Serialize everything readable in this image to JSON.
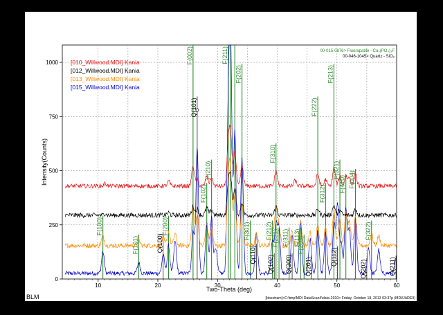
{
  "chart_data": {
    "type": "line",
    "xlabel": "Two-Theta (deg)",
    "ylabel": "Intensity(Counts)",
    "xlim": [
      4,
      60
    ],
    "ylim": [
      0,
      1000
    ],
    "x_ticks": [
      10,
      20,
      30,
      40,
      50,
      60
    ],
    "y_ticks": [
      0,
      250,
      500,
      750,
      1000
    ],
    "grid": true,
    "legend_placement": "top-left",
    "series": [
      {
        "name": "[010_Willwood.MDI] Kania",
        "color": "#e81010",
        "baseline": 425,
        "noise": 9,
        "peaks": [
          [
            11.2,
            12
          ],
          [
            21.8,
            22
          ],
          [
            25.9,
            95
          ],
          [
            26.6,
            30
          ],
          [
            28.2,
            45
          ],
          [
            29.0,
            40
          ],
          [
            31.8,
            180
          ],
          [
            32.2,
            230
          ],
          [
            32.9,
            160
          ],
          [
            34.1,
            95
          ],
          [
            39.8,
            70
          ],
          [
            43.0,
            25
          ],
          [
            46.8,
            55
          ],
          [
            48.1,
            30
          ],
          [
            49.5,
            85
          ],
          [
            50.5,
            45
          ],
          [
            51.5,
            48
          ],
          [
            52.1,
            40
          ],
          [
            53.1,
            60
          ]
        ]
      },
      {
        "name": "[012_Willwood.MDI] Kania",
        "color": "#000000",
        "baseline": 290,
        "noise": 10,
        "peaks": [
          [
            11.2,
            8
          ],
          [
            21.8,
            12
          ],
          [
            25.9,
            40
          ],
          [
            26.6,
            30
          ],
          [
            28.2,
            35
          ],
          [
            29.0,
            25
          ],
          [
            31.8,
            130
          ],
          [
            32.2,
            160
          ],
          [
            32.9,
            120
          ],
          [
            34.1,
            60
          ],
          [
            39.8,
            40
          ],
          [
            46.8,
            30
          ],
          [
            49.5,
            45
          ],
          [
            50.5,
            25
          ],
          [
            53.1,
            30
          ]
        ]
      },
      {
        "name": "[013_Willwood.MDI] Kania",
        "color": "#ff8c00",
        "baseline": 150,
        "noise": 10,
        "peaks": [
          [
            10.8,
            45
          ],
          [
            16.8,
            25
          ],
          [
            20.9,
            35
          ],
          [
            21.8,
            65
          ],
          [
            22.9,
            55
          ],
          [
            25.9,
            170
          ],
          [
            26.6,
            150
          ],
          [
            28.2,
            100
          ],
          [
            29.0,
            85
          ],
          [
            31.8,
            270
          ],
          [
            32.2,
            330
          ],
          [
            32.9,
            240
          ],
          [
            34.1,
            200
          ],
          [
            36.5,
            55
          ],
          [
            39.2,
            80
          ],
          [
            39.8,
            180
          ],
          [
            40.3,
            90
          ],
          [
            42.5,
            70
          ],
          [
            43.9,
            110
          ],
          [
            45.5,
            60
          ],
          [
            46.8,
            90
          ],
          [
            48.1,
            90
          ],
          [
            49.5,
            160
          ],
          [
            50.5,
            130
          ],
          [
            51.5,
            150
          ],
          [
            52.1,
            110
          ],
          [
            53.1,
            130
          ],
          [
            55.8,
            55
          ],
          [
            57.0,
            45
          ]
        ]
      },
      {
        "name": "[015_Willwood.MDI] Kania",
        "color": "#0000cc",
        "baseline": 22,
        "noise": 9,
        "peaks": [
          [
            10.8,
            100
          ],
          [
            16.8,
            50
          ],
          [
            20.9,
            85
          ],
          [
            21.8,
            130
          ],
          [
            22.9,
            150
          ],
          [
            25.9,
            200
          ],
          [
            26.6,
            580
          ],
          [
            28.2,
            230
          ],
          [
            29.0,
            260
          ],
          [
            29.7,
            120
          ],
          [
            31.8,
            700
          ],
          [
            32.2,
            1000
          ],
          [
            32.9,
            650
          ],
          [
            34.1,
            530
          ],
          [
            36.5,
            180
          ],
          [
            39.2,
            150
          ],
          [
            39.8,
            220
          ],
          [
            40.3,
            210
          ],
          [
            42.5,
            180
          ],
          [
            43.9,
            240
          ],
          [
            45.5,
            160
          ],
          [
            46.8,
            200
          ],
          [
            48.1,
            190
          ],
          [
            49.5,
            230
          ],
          [
            50.1,
            320
          ],
          [
            50.7,
            140
          ],
          [
            51.5,
            300
          ],
          [
            52.1,
            200
          ],
          [
            53.1,
            260
          ],
          [
            55.3,
            120
          ],
          [
            57.0,
            110
          ],
          [
            59.9,
            60
          ]
        ]
      }
    ],
    "reference_patterns": [
      {
        "name": "00-015-0876> Fluorapatite - Ca₅(PO₄)₃F",
        "color": "#2e8b2e",
        "peaks": [
          [
            10.8,
            "F(100)",
            0.27
          ],
          [
            16.8,
            "F(101)",
            0.19
          ],
          [
            21.8,
            "F(200)",
            0.27
          ],
          [
            25.9,
            "F(002)",
            1.05
          ],
          [
            28.2,
            "F(102)",
            0.41
          ],
          [
            29.0,
            "F(210)",
            0.51
          ],
          [
            31.8,
            "F(211)",
            1.05
          ],
          [
            32.2,
            "",
            1.05
          ],
          [
            32.9,
            "",
            1.05
          ],
          [
            34.1,
            "F(202)",
            0.92
          ],
          [
            35.5,
            "F(301)",
            0.25
          ],
          [
            39.2,
            "F(212)",
            0.25
          ],
          [
            39.8,
            "F(310)",
            0.58
          ],
          [
            40.3,
            "F(221)",
            0.22
          ],
          [
            42.0,
            "F(311)",
            0.22
          ],
          [
            43.9,
            "F(113)",
            0.22
          ],
          [
            44.5,
            "F(203)",
            0.19
          ],
          [
            46.8,
            "F(222)",
            0.78
          ],
          [
            48.1,
            "F(312)",
            0.41
          ],
          [
            49.5,
            "F(213)",
            0.92
          ],
          [
            50.5,
            "F(321)",
            0.51
          ],
          [
            51.5,
            "F(410)",
            0.45
          ],
          [
            53.1,
            "F(004)",
            0.47
          ],
          [
            55.8,
            "F(322)",
            0.25
          ]
        ]
      },
      {
        "name": "00-046-1045> Quartz - SiO₂",
        "color": "#000000",
        "peaks": [
          [
            20.9,
            "Q(100)",
            0.2
          ],
          [
            26.6,
            "Q(101)",
            0.78
          ],
          [
            36.5,
            "Q(110)",
            0.15
          ],
          [
            39.5,
            "Q(102)",
            0.11
          ],
          [
            42.5,
            "Q(200)",
            0.11
          ],
          [
            45.8,
            "Q(201)",
            0.1
          ],
          [
            50.1,
            "Q(112)",
            0.14
          ],
          [
            55.0,
            "Q(202)",
            0.09
          ],
          [
            59.9,
            "Q(211)",
            0.1
          ]
        ]
      }
    ]
  },
  "footer": {
    "left": "BLM",
    "right": "[bbestram]<C:\\tmp\\MDI DataScan4\\data-2010> Friday, October 18, 2013 03:37p (MDI/JADE9)"
  }
}
